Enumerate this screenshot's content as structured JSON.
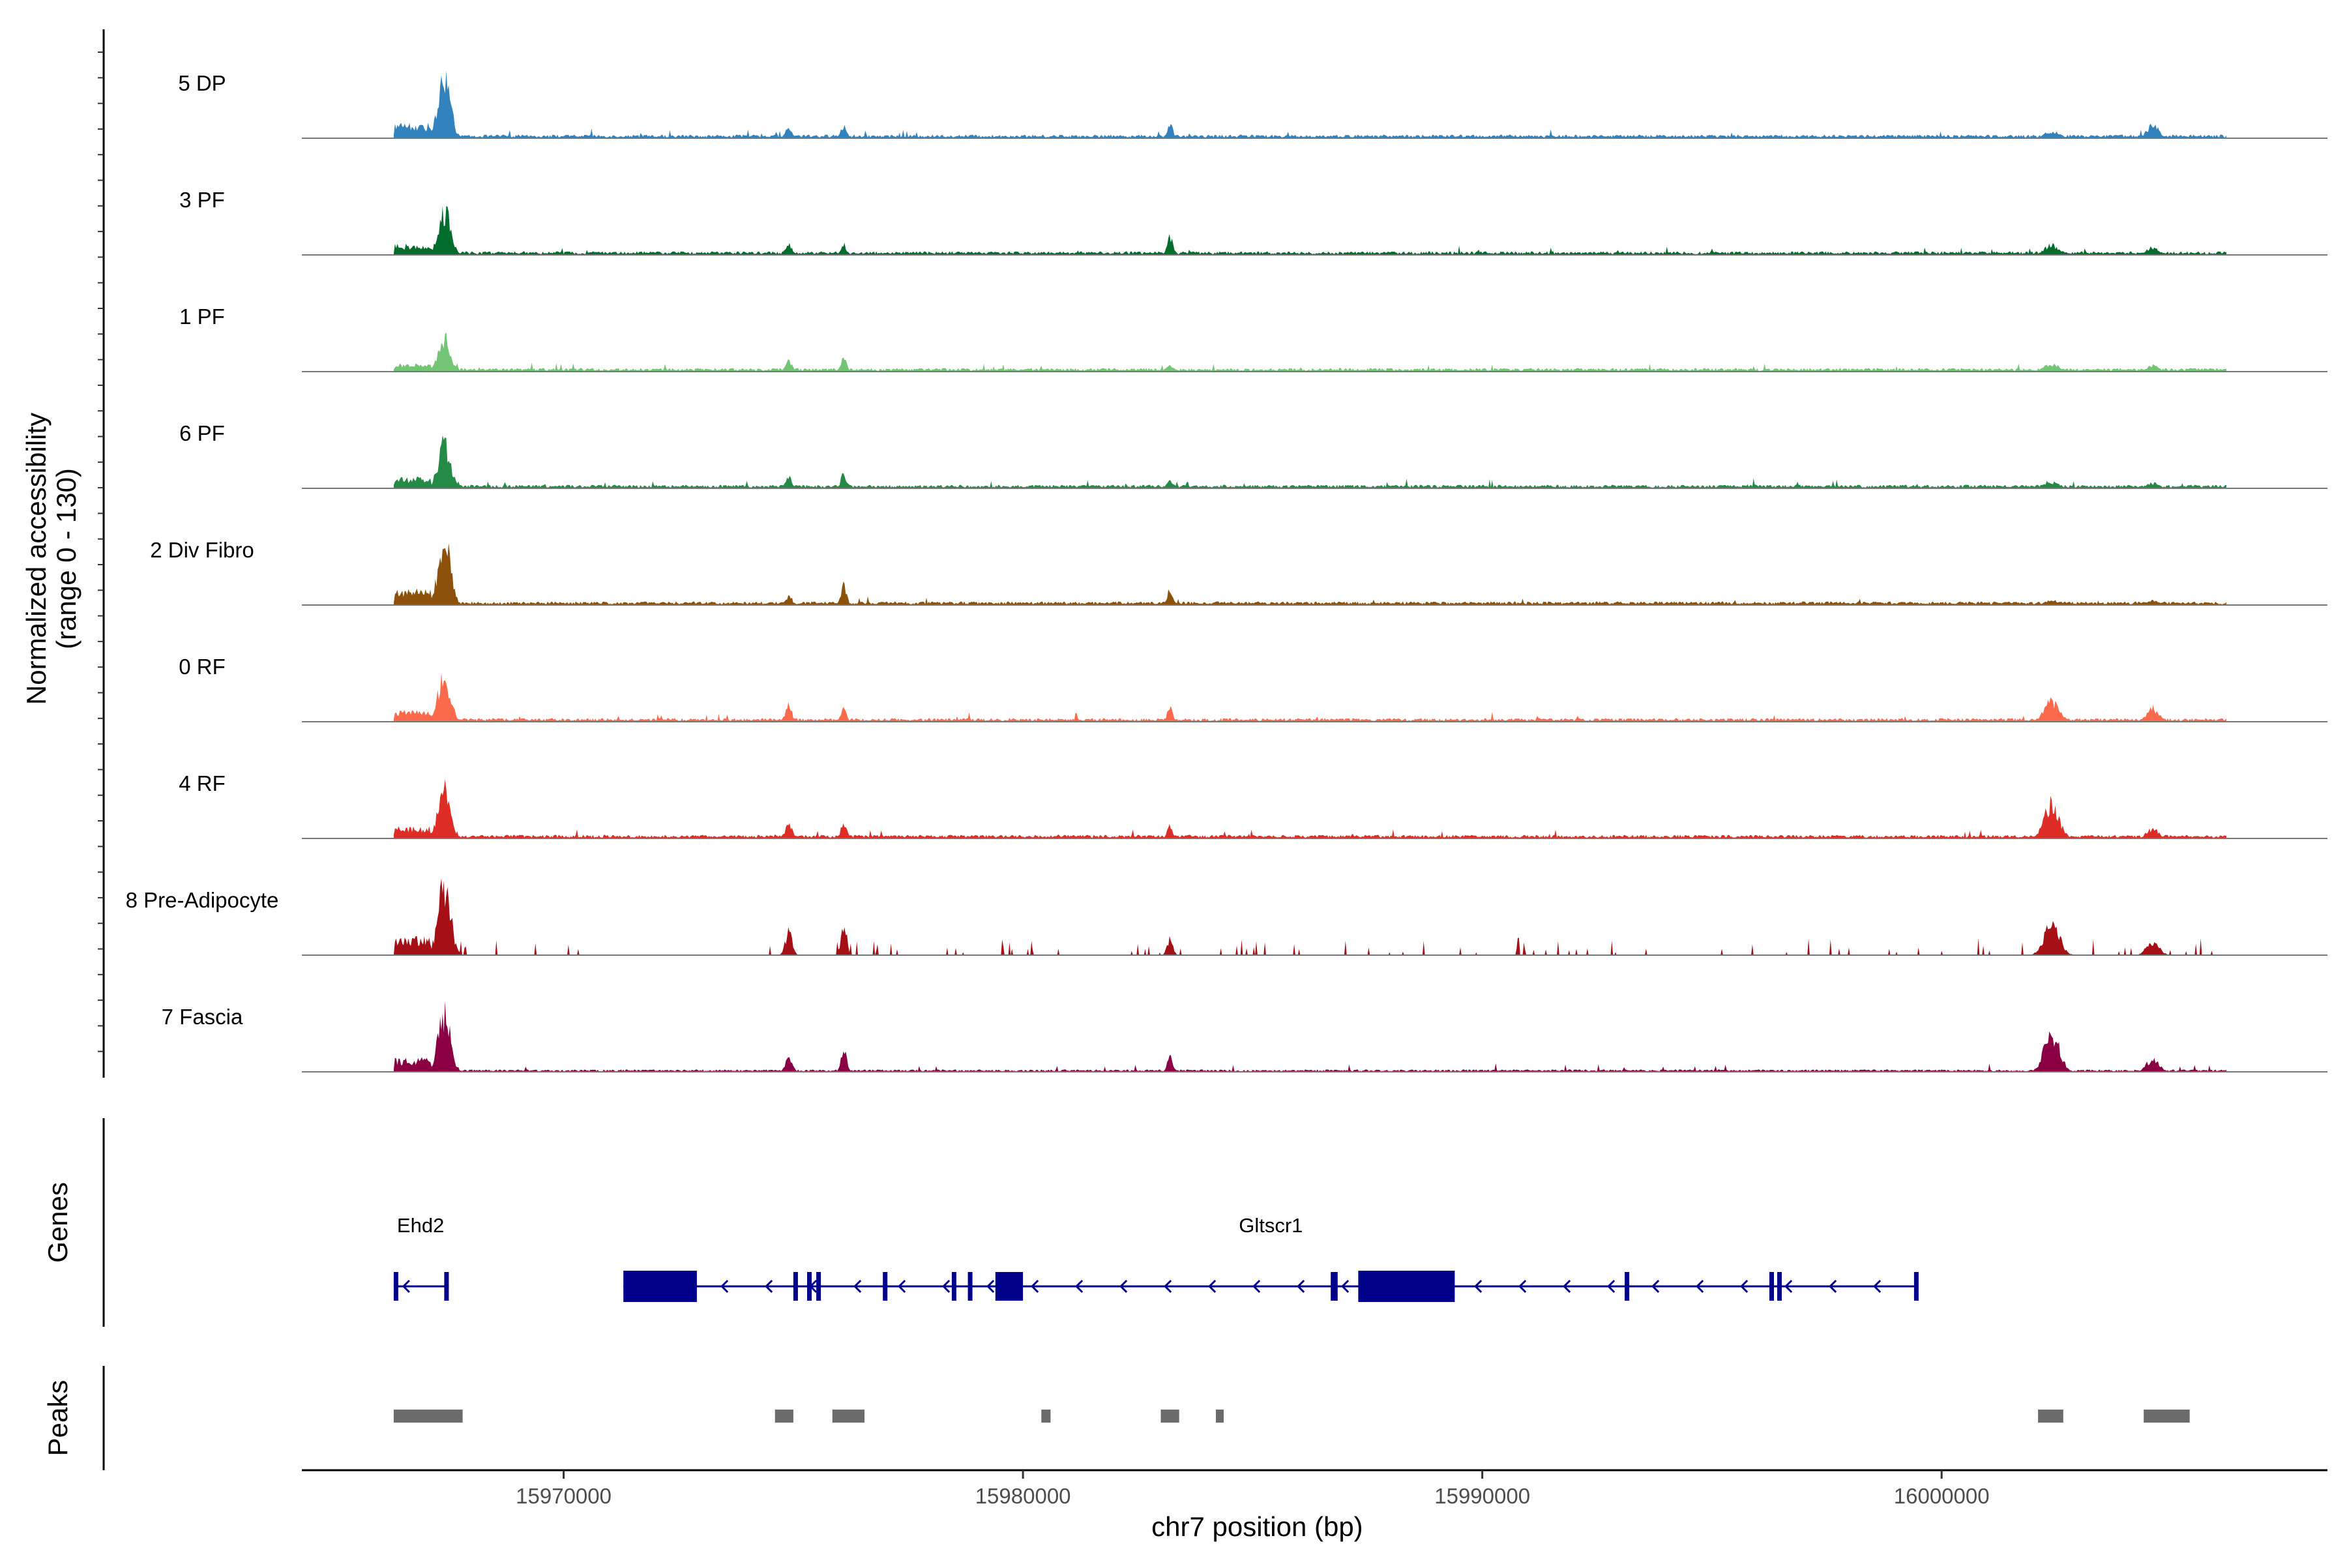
{
  "chart_data": {
    "type": "area",
    "title": "",
    "xlabel": "chr7 position (bp)",
    "ylabel": "Normalized accessibility",
    "ylabel_range": "(range 0 - 130)",
    "ylim": [
      0,
      130
    ],
    "xlim": [
      15964300,
      16008400
    ],
    "x_ticks": [
      15970000,
      15980000,
      15990000,
      16000000
    ],
    "x_tick_labels": [
      "15970000",
      "15980000",
      "15990000",
      "16000000"
    ],
    "peak_positions": [
      15967400,
      15974900,
      15976100,
      15983200,
      16002400,
      16004600
    ],
    "tracks": [
      {
        "name": "5 DP",
        "color": "#3182bd",
        "heights": [
          85,
          14,
          17,
          19,
          9,
          17
        ],
        "baseline": 3
      },
      {
        "name": "3 PF",
        "color": "#006d2c",
        "heights": [
          60,
          14,
          14,
          23,
          13,
          10
        ],
        "baseline": 3
      },
      {
        "name": "1 PF",
        "color": "#74c476",
        "heights": [
          44,
          14,
          18,
          10,
          10,
          8
        ],
        "baseline": 3
      },
      {
        "name": "6 PF",
        "color": "#238b45",
        "heights": [
          62,
          14,
          21,
          10,
          8,
          7
        ],
        "baseline": 3
      },
      {
        "name": "2 Div Fibro",
        "color": "#8c510a",
        "heights": [
          88,
          13,
          26,
          21,
          6,
          6
        ],
        "baseline": 3
      },
      {
        "name": "0 RF",
        "color": "#fb6a4a",
        "heights": [
          63,
          21,
          19,
          19,
          28,
          18
        ],
        "baseline": 3
      },
      {
        "name": "4 RF",
        "color": "#de2d26",
        "heights": [
          65,
          20,
          22,
          18,
          46,
          13
        ],
        "baseline": 3
      },
      {
        "name": "8 Pre-Adipocyte",
        "color": "#a50f15",
        "heights": [
          100,
          32,
          45,
          22,
          45,
          20
        ],
        "baseline": 0
      },
      {
        "name": "7 Fascia",
        "color": "#8b0045",
        "heights": [
          78,
          22,
          30,
          20,
          55,
          18
        ],
        "baseline": 2
      }
    ],
    "genes_track_label": "Genes",
    "genes": [
      {
        "name": "Ehd2",
        "start": 15966300,
        "end": 15967500,
        "strand": "-",
        "exons": [
          [
            15966300,
            15966350
          ],
          [
            15967400,
            15967500
          ]
        ]
      },
      {
        "name": "Gltscr1",
        "start": 15971300,
        "end": 15999400,
        "strand": "-",
        "exons": [
          [
            15971300,
            15972900
          ],
          [
            15975000,
            15975100
          ],
          [
            15975300,
            15975400
          ],
          [
            15975500,
            15975600
          ],
          [
            15976950,
            15977020
          ],
          [
            15978450,
            15978520
          ],
          [
            15978800,
            15978900
          ],
          [
            15979400,
            15980000
          ],
          [
            15986700,
            15986850
          ],
          [
            15987300,
            15989400
          ],
          [
            15993100,
            15993160
          ],
          [
            15996250,
            15996300
          ],
          [
            15996420,
            15996460
          ],
          [
            15999400,
            15999480
          ]
        ]
      }
    ],
    "peaks_track_label": "Peaks",
    "peaks": [
      [
        15966300,
        15967800
      ],
      [
        15974600,
        15975000
      ],
      [
        15975850,
        15976550
      ],
      [
        15980400,
        15980600
      ],
      [
        15983000,
        15983400
      ],
      [
        15984200,
        15984350
      ],
      [
        16002100,
        16002650
      ],
      [
        16004400,
        16005400
      ]
    ]
  }
}
